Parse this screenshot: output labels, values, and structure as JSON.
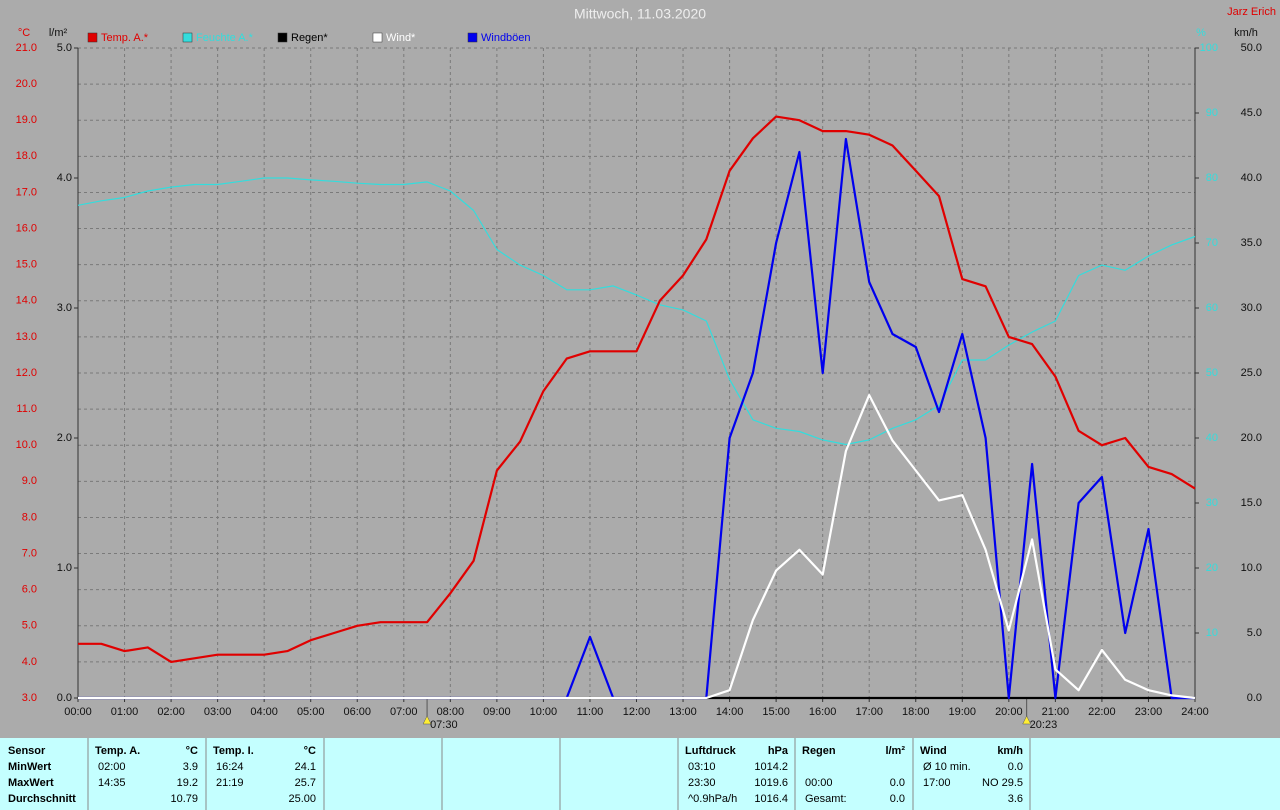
{
  "chart_data": {
    "type": "line",
    "title": "Mittwoch, 11.03.2020",
    "author": "Jarz Erich",
    "ylabel": "°C",
    "y2label": "l/m²",
    "y3label": "%",
    "y4label": "km/h",
    "x": [
      0,
      0.5,
      1,
      1.5,
      2,
      2.5,
      3,
      3.5,
      4,
      4.5,
      5,
      5.5,
      6,
      6.5,
      7,
      7.5,
      8,
      8.5,
      9,
      9.5,
      10,
      10.5,
      11,
      11.5,
      12,
      12.5,
      13,
      13.5,
      14,
      14.5,
      15,
      15.5,
      16,
      16.5,
      17,
      17.5,
      18,
      18.5,
      19,
      19.5,
      20,
      20.5,
      21,
      21.5,
      22,
      22.5,
      23,
      23.5,
      24
    ],
    "xlim": [
      0,
      24
    ],
    "xticks": [
      {
        "value": 0,
        "label": "00:00"
      },
      {
        "value": 1,
        "label": "01:00"
      },
      {
        "value": 2,
        "label": "02:00"
      },
      {
        "value": 3,
        "label": "03:00"
      },
      {
        "value": 4,
        "label": "04:00"
      },
      {
        "value": 5,
        "label": "05:00"
      },
      {
        "value": 6,
        "label": "06:00"
      },
      {
        "value": 7,
        "label": "07:00"
      },
      {
        "value": 8,
        "label": "08:00"
      },
      {
        "value": 9,
        "label": "09:00"
      },
      {
        "value": 10,
        "label": "10:00"
      },
      {
        "value": 11,
        "label": "11:00"
      },
      {
        "value": 12,
        "label": "12:00"
      },
      {
        "value": 13,
        "label": "13:00"
      },
      {
        "value": 14,
        "label": "14:00"
      },
      {
        "value": 15,
        "label": "15:00"
      },
      {
        "value": 16,
        "label": "16:00"
      },
      {
        "value": 17,
        "label": "17:00"
      },
      {
        "value": 18,
        "label": "18:00"
      },
      {
        "value": 19,
        "label": "19:00"
      },
      {
        "value": 20,
        "label": "20:00"
      },
      {
        "value": 21,
        "label": "21:00"
      },
      {
        "value": 22,
        "label": "22:00"
      },
      {
        "value": 23,
        "label": "23:00"
      },
      {
        "value": 24,
        "label": "24:00"
      }
    ],
    "ylim": [
      3,
      21
    ],
    "yticks": [
      {
        "value": 3,
        "label": "3.0"
      },
      {
        "value": 4,
        "label": "4.0"
      },
      {
        "value": 5,
        "label": "5.0"
      },
      {
        "value": 6,
        "label": "6.0"
      },
      {
        "value": 7,
        "label": "7.0"
      },
      {
        "value": 8,
        "label": "8.0"
      },
      {
        "value": 9,
        "label": "9.0"
      },
      {
        "value": 10,
        "label": "10.0"
      },
      {
        "value": 11,
        "label": "11.0"
      },
      {
        "value": 12,
        "label": "12.0"
      },
      {
        "value": 13,
        "label": "13.0"
      },
      {
        "value": 14,
        "label": "14.0"
      },
      {
        "value": 15,
        "label": "15.0"
      },
      {
        "value": 16,
        "label": "16.0"
      },
      {
        "value": 17,
        "label": "17.0"
      },
      {
        "value": 18,
        "label": "18.0"
      },
      {
        "value": 19,
        "label": "19.0"
      },
      {
        "value": 20,
        "label": "20.0"
      },
      {
        "value": 21,
        "label": "21.0"
      }
    ],
    "y2lim": [
      0,
      5
    ],
    "y2ticks": [
      {
        "value": 0,
        "label": "0.0"
      },
      {
        "value": 1,
        "label": "1.0"
      },
      {
        "value": 2,
        "label": "2.0"
      },
      {
        "value": 3,
        "label": "3.0"
      },
      {
        "value": 4,
        "label": "4.0"
      },
      {
        "value": 5,
        "label": "5.0"
      }
    ],
    "y3lim": [
      0,
      100
    ],
    "y3ticks": [
      10,
      20,
      30,
      40,
      50,
      60,
      70,
      80,
      90,
      100
    ],
    "y4lim": [
      0,
      50
    ],
    "y4ticks": [
      {
        "value": 0,
        "label": "0.0"
      },
      {
        "value": 5,
        "label": "5.0"
      },
      {
        "value": 10,
        "label": "10.0"
      },
      {
        "value": 15,
        "label": "15.0"
      },
      {
        "value": 20,
        "label": "20.0"
      },
      {
        "value": 25,
        "label": "25.0"
      },
      {
        "value": 30,
        "label": "30.0"
      },
      {
        "value": 35,
        "label": "35.0"
      },
      {
        "value": 40,
        "label": "40.0"
      },
      {
        "value": 45,
        "label": "45.0"
      },
      {
        "value": 50,
        "label": "50.0"
      }
    ],
    "grid": true,
    "series": [
      {
        "name": "Feuchte A.*",
        "color": "#33dddd",
        "axis": "y3",
        "values": [
          75.8,
          76.5,
          77,
          78,
          78.6,
          79,
          79,
          79.5,
          80,
          80,
          79.7,
          79.5,
          79.2,
          79,
          79,
          79.4,
          78,
          75,
          69,
          66.6,
          65,
          62.8,
          62.8,
          63.4,
          62,
          60.5,
          59.7,
          58,
          49,
          42.8,
          41.5,
          41,
          39.7,
          39,
          39.7,
          41.5,
          42.8,
          45,
          52,
          52,
          54.3,
          56.3,
          58,
          65,
          66.6,
          65.8,
          68,
          69.7,
          71
        ]
      },
      {
        "name": "Regen*",
        "color": "#000000",
        "axis": "y2",
        "values": [
          0,
          0,
          0,
          0,
          0,
          0,
          0,
          0,
          0,
          0,
          0,
          0,
          0,
          0,
          0,
          0,
          0,
          0,
          0,
          0,
          0,
          0,
          0,
          0,
          0,
          0,
          0,
          0,
          0,
          0,
          0,
          0,
          0,
          0,
          0,
          0,
          0,
          0,
          0,
          0,
          0,
          0,
          0,
          0,
          0,
          0,
          0,
          0,
          0
        ]
      },
      {
        "name": "Windböen",
        "color": "#0000ee",
        "axis": "y4",
        "values": [
          0,
          0,
          0,
          0,
          0,
          0,
          0,
          0,
          0,
          0,
          0,
          0,
          0,
          0,
          0,
          0,
          0,
          0,
          0,
          0,
          0,
          0,
          4.7,
          0,
          0,
          0,
          0,
          0,
          20,
          25,
          35,
          42,
          25,
          43,
          32,
          28,
          27,
          22,
          28,
          20,
          0,
          18,
          0,
          15,
          17,
          5,
          13,
          0,
          0
        ]
      },
      {
        "name": "Wind*",
        "color": "#ffffff",
        "axis": "y4",
        "values": [
          0,
          0,
          0,
          0,
          0,
          0,
          0,
          0,
          0,
          0,
          0,
          0,
          0,
          0,
          0,
          0,
          0,
          0,
          0,
          0,
          0,
          0,
          0,
          0,
          0,
          0,
          0,
          0,
          0.6,
          6,
          9.8,
          11.4,
          9.5,
          19,
          23.3,
          19.8,
          17.5,
          15.2,
          15.6,
          11.4,
          5.2,
          12.2,
          2.2,
          0.6,
          3.7,
          1.4,
          0.6,
          0.2,
          0
        ]
      },
      {
        "name": "Temp. A.*",
        "color": "#e00000",
        "axis": "y",
        "values": [
          4.5,
          4.5,
          4.3,
          4.4,
          4.0,
          4.1,
          4.2,
          4.2,
          4.2,
          4.3,
          4.6,
          4.8,
          5.0,
          5.1,
          5.1,
          5.1,
          5.9,
          6.8,
          9.3,
          10.1,
          11.5,
          12.4,
          12.6,
          12.6,
          12.6,
          14.0,
          14.7,
          15.7,
          17.6,
          18.5,
          19.1,
          19.0,
          18.7,
          18.7,
          18.6,
          18.3,
          17.6,
          16.9,
          14.6,
          14.4,
          13.0,
          12.8,
          11.9,
          10.4,
          10.0,
          10.2,
          9.4,
          9.2,
          8.8
        ]
      }
    ],
    "legend_order": [
      4,
      0,
      1,
      3,
      2
    ],
    "annotations": [
      {
        "value": 7.5,
        "label": "07:30"
      },
      {
        "value": 20.383,
        "label": "20:23"
      }
    ]
  },
  "table": {
    "row_labels": [
      "Sensor",
      "MinWert",
      "MaxWert",
      "Durchschnitt"
    ],
    "columns": [
      {
        "title": "Temp. A.",
        "unit": "°C",
        "rows": [
          [
            "02:00",
            "3.9"
          ],
          [
            "14:35",
            "19.2"
          ],
          [
            null,
            "10.79"
          ]
        ]
      },
      {
        "title": "Temp. I.",
        "unit": "°C",
        "rows": [
          [
            "16:24",
            "24.1"
          ],
          [
            "21:19",
            "25.7"
          ],
          [
            null,
            "25.00"
          ]
        ]
      },
      {
        "title": "Luftdruck",
        "unit": "hPa",
        "rows": [
          [
            "03:10",
            "1014.2"
          ],
          [
            "23:30",
            "1019.6"
          ],
          [
            "^0.9hPa/h",
            "1016.4"
          ]
        ]
      },
      {
        "title": "Regen",
        "unit": "l/m²",
        "rows": [
          [
            null,
            null
          ],
          [
            "00:00",
            "0.0"
          ],
          [
            "Gesamt:",
            "0.0"
          ]
        ]
      },
      {
        "title": "Wind",
        "unit": "km/h",
        "rows": [
          [
            "Ø 10 min.",
            "0.0"
          ],
          [
            "17:00",
            "NO 29.5"
          ],
          [
            null,
            "3.6"
          ]
        ]
      }
    ]
  }
}
